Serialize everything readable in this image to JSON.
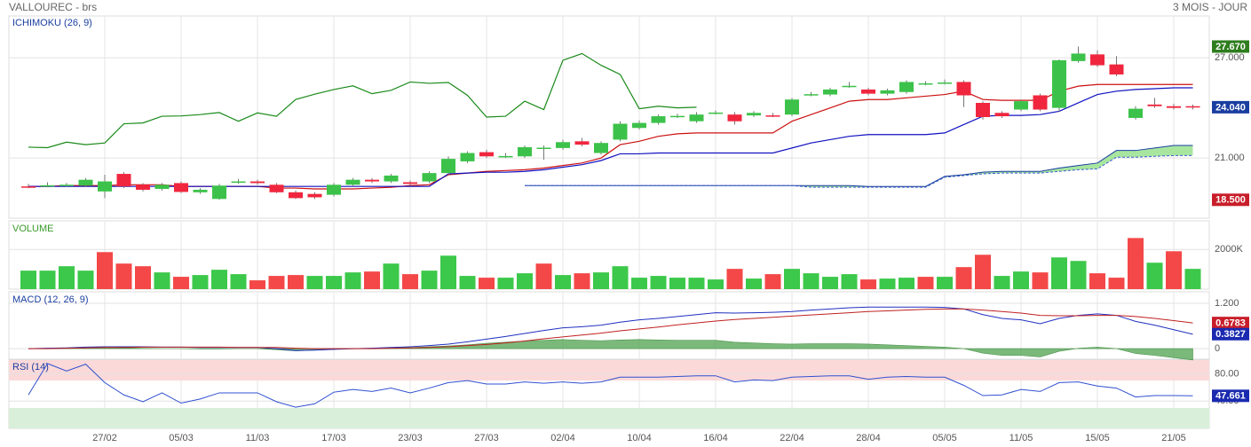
{
  "header": {
    "title": "VALLOUREC - brs",
    "period": "3 MOIS - JOUR"
  },
  "chart_data": [
    {
      "type": "candlestick",
      "title": "ICHIMOKU (26, 9)",
      "categories": [
        null,
        null,
        null,
        null,
        "27/02",
        null,
        null,
        null,
        "05/03",
        null,
        null,
        null,
        "11/03",
        null,
        null,
        null,
        "17/03",
        null,
        null,
        null,
        "23/03",
        null,
        null,
        null,
        "27/03",
        null,
        null,
        null,
        "02/04",
        null,
        null,
        null,
        "10/04",
        null,
        null,
        null,
        "16/04",
        null,
        null,
        null,
        "22/04",
        null,
        null,
        null,
        "28/04",
        null,
        null,
        null,
        "05/05",
        null,
        null,
        null,
        "11/05",
        null,
        null,
        null,
        "15/05",
        null,
        null,
        null,
        "21/05",
        null
      ],
      "open": [
        19.3,
        19.33,
        19.38,
        19.35,
        19.0,
        20.05,
        19.4,
        19.15,
        19.5,
        18.95,
        18.55,
        19.55,
        19.6,
        19.4,
        18.95,
        18.85,
        18.8,
        19.4,
        19.7,
        19.6,
        19.55,
        19.6,
        20.1,
        20.8,
        21.35,
        21.1,
        21.1,
        21.6,
        21.6,
        22.0,
        21.3,
        22.1,
        22.8,
        23.1,
        23.5,
        23.2,
        23.7,
        23.6,
        23.55,
        23.55,
        23.6,
        24.8,
        24.8,
        25.3,
        25.1,
        24.85,
        24.95,
        25.45,
        25.5,
        25.55,
        24.3,
        23.7,
        23.9,
        24.75,
        24.0,
        26.8,
        27.2,
        26.6,
        23.4,
        24.2,
        24.1,
        24.1
      ],
      "high": [
        19.45,
        19.55,
        19.5,
        19.8,
        20.0,
        20.15,
        19.5,
        19.5,
        19.6,
        19.2,
        19.45,
        19.75,
        19.7,
        19.5,
        19.05,
        18.95,
        19.5,
        19.8,
        19.8,
        20.05,
        19.65,
        20.2,
        21.1,
        21.4,
        21.5,
        21.3,
        21.75,
        21.75,
        22.1,
        22.2,
        22.0,
        23.2,
        23.25,
        23.6,
        23.65,
        23.75,
        23.85,
        23.75,
        23.8,
        23.7,
        24.6,
        24.95,
        25.2,
        25.55,
        25.2,
        25.15,
        25.65,
        25.6,
        25.7,
        25.65,
        24.4,
        23.8,
        24.5,
        24.85,
        26.9,
        27.67,
        27.45,
        27.1,
        24.1,
        24.6,
        24.25,
        24.2
      ],
      "low": [
        19.2,
        19.25,
        19.3,
        19.25,
        18.6,
        19.2,
        19.0,
        19.05,
        18.9,
        18.85,
        18.5,
        19.45,
        19.4,
        18.9,
        18.55,
        18.55,
        18.7,
        19.3,
        19.5,
        19.5,
        19.35,
        19.5,
        20.0,
        20.7,
        21.0,
        21.0,
        21.0,
        20.9,
        21.5,
        21.7,
        21.2,
        22.0,
        22.7,
        23.0,
        23.4,
        23.1,
        23.6,
        23.0,
        23.45,
        23.45,
        23.5,
        24.7,
        24.7,
        25.2,
        24.75,
        24.75,
        24.85,
        25.35,
        25.4,
        24.05,
        23.3,
        23.4,
        23.8,
        23.8,
        23.75,
        26.7,
        26.45,
        25.9,
        23.3,
        24.0,
        23.9,
        23.9
      ],
      "close": [
        19.28,
        19.37,
        19.4,
        19.7,
        19.6,
        19.3,
        19.1,
        19.4,
        18.97,
        19.1,
        19.35,
        19.6,
        19.5,
        18.95,
        18.6,
        18.65,
        19.4,
        19.7,
        19.6,
        19.95,
        19.45,
        20.1,
        20.95,
        21.3,
        21.1,
        21.12,
        21.65,
        21.62,
        21.95,
        21.8,
        21.9,
        23.05,
        23.1,
        23.5,
        23.52,
        23.6,
        23.72,
        23.2,
        23.7,
        23.5,
        24.5,
        24.82,
        25.1,
        25.32,
        24.85,
        25.05,
        25.55,
        25.47,
        25.52,
        24.75,
        23.45,
        23.5,
        24.4,
        23.9,
        26.85,
        27.25,
        26.55,
        26.0,
        23.95,
        24.1,
        24.0,
        24.04
      ],
      "up_color": "#3cc24a",
      "down_color": "#f0263e",
      "series": [
        {
          "color": "#cc1010",
          "values": [
            19.3,
            19.3,
            19.35,
            19.35,
            19.35,
            19.4,
            19.4,
            19.4,
            19.3,
            19.3,
            19.3,
            19.3,
            19.3,
            19.2,
            19.2,
            19.15,
            19.15,
            19.15,
            19.2,
            19.25,
            19.35,
            19.4,
            20.0,
            20.1,
            20.2,
            20.25,
            20.3,
            20.4,
            20.55,
            20.7,
            21.0,
            21.8,
            22.0,
            22.3,
            22.45,
            22.5,
            22.5,
            22.5,
            22.5,
            22.5,
            23.2,
            23.6,
            24.0,
            24.4,
            24.5,
            24.5,
            24.6,
            24.7,
            24.8,
            25.0,
            24.5,
            24.45,
            24.45,
            24.45,
            25.0,
            25.3,
            25.4,
            25.4,
            25.4,
            25.4,
            25.4,
            25.4
          ]
        },
        {
          "color": "#1010c0",
          "values": [
            19.3,
            19.3,
            19.3,
            19.3,
            19.3,
            19.3,
            19.3,
            19.3,
            19.3,
            19.3,
            19.3,
            19.3,
            19.3,
            19.3,
            19.3,
            19.3,
            19.3,
            19.3,
            19.3,
            19.3,
            19.3,
            19.3,
            20.05,
            20.1,
            20.15,
            20.15,
            20.2,
            20.3,
            20.45,
            20.6,
            20.85,
            21.25,
            21.25,
            21.3,
            21.3,
            21.3,
            21.3,
            21.3,
            21.3,
            21.3,
            21.6,
            21.9,
            22.1,
            22.3,
            22.4,
            22.4,
            22.4,
            22.4,
            22.5,
            23.0,
            23.5,
            23.55,
            23.55,
            23.6,
            23.8,
            24.3,
            24.8,
            25.0,
            25.1,
            25.15,
            25.2,
            25.2
          ]
        },
        {
          "color": "#1a8a1a",
          "values": [
            21.65,
            21.62,
            21.95,
            21.8,
            21.9,
            23.05,
            23.1,
            23.5,
            23.52,
            23.6,
            23.72,
            23.2,
            23.7,
            23.5,
            24.5,
            24.82,
            25.1,
            25.32,
            24.85,
            25.05,
            25.55,
            25.47,
            25.52,
            24.75,
            23.45,
            23.5,
            24.4,
            23.9,
            26.85,
            27.25,
            26.55,
            26.0,
            23.95,
            24.1,
            24.0,
            24.04,
            null,
            null,
            null,
            null,
            null,
            null,
            null,
            null,
            null,
            null,
            null,
            null,
            null,
            null,
            null,
            null,
            null,
            null,
            null,
            null,
            null,
            null,
            null,
            null,
            null,
            null
          ]
        }
      ],
      "cloud": {
        "color": "#a8e6a0",
        "upper": {
          "color": "#1a3ea0",
          "values": [
            null,
            null,
            null,
            null,
            null,
            null,
            null,
            null,
            null,
            null,
            null,
            null,
            null,
            null,
            null,
            null,
            null,
            null,
            null,
            null,
            null,
            null,
            null,
            null,
            null,
            null,
            19.35,
            19.35,
            19.35,
            19.35,
            19.35,
            19.35,
            19.35,
            19.35,
            19.35,
            19.35,
            19.35,
            19.35,
            19.35,
            19.35,
            19.35,
            19.35,
            19.35,
            19.35,
            19.3,
            19.3,
            19.3,
            19.3,
            19.9,
            20.0,
            20.15,
            20.2,
            20.2,
            20.2,
            20.4,
            20.55,
            20.7,
            21.45,
            21.45,
            21.6,
            21.75,
            21.75
          ]
        },
        "lower": {
          "color": "#3a5ad0",
          "values": [
            null,
            null,
            null,
            null,
            null,
            null,
            null,
            null,
            null,
            null,
            null,
            null,
            null,
            null,
            null,
            null,
            null,
            null,
            null,
            null,
            null,
            null,
            null,
            null,
            null,
            null,
            19.35,
            19.35,
            19.35,
            19.35,
            19.35,
            19.35,
            19.35,
            19.35,
            19.35,
            19.35,
            19.35,
            19.35,
            19.35,
            19.35,
            19.35,
            19.25,
            19.25,
            19.25,
            19.25,
            19.25,
            19.25,
            19.25,
            19.85,
            19.95,
            20.05,
            20.1,
            20.1,
            20.1,
            20.2,
            20.3,
            20.35,
            21.05,
            21.05,
            21.1,
            21.15,
            21.15
          ]
        }
      },
      "ylim": [
        17.4,
        29.5
      ],
      "yticks": [
        {
          "value": 21,
          "label": "21.000"
        },
        {
          "value": 27,
          "label": "27.000"
        }
      ],
      "price_labels": [
        {
          "value": 27.67,
          "label": "27.670",
          "color": "#2e7d1e"
        },
        {
          "value": 24.04,
          "label": "24.040",
          "color": "#1a3ea0"
        },
        {
          "value": 18.5,
          "label": "18.500",
          "color": "#c81e2a"
        }
      ]
    },
    {
      "type": "bar",
      "title": "VOLUME",
      "values": [
        933000,
        933000,
        1156000,
        933000,
        1867000,
        1289000,
        1156000,
        844000,
        622000,
        711000,
        978000,
        756000,
        444000,
        667000,
        711000,
        667000,
        667000,
        844000,
        889000,
        1289000,
        756000,
        933000,
        1689000,
        667000,
        578000,
        578000,
        800000,
        1289000,
        711000,
        800000,
        844000,
        1156000,
        578000,
        667000,
        578000,
        578000,
        489000,
        1022000,
        533000,
        756000,
        1022000,
        800000,
        622000,
        756000,
        489000,
        533000,
        578000,
        622000,
        622000,
        1111000,
        1733000,
        667000,
        889000,
        844000,
        1600000,
        1422000,
        800000,
        578000,
        2578000,
        1333000,
        1911000,
        1022000
      ],
      "up_color": "#3cc84a",
      "down_color": "#f44848",
      "ylim": [
        0,
        3400000
      ],
      "yticks": [
        {
          "value": 2000000,
          "label": "2000K"
        }
      ]
    },
    {
      "type": "macd",
      "title": "MACD (12, 26, 9)",
      "series": [
        {
          "color": "#2030c0",
          "values": [
            0.0,
            0.01,
            0.02,
            0.04,
            0.05,
            0.05,
            0.05,
            0.04,
            0.04,
            0.03,
            0.03,
            0.03,
            0.03,
            0.0,
            -0.05,
            -0.04,
            -0.02,
            0.0,
            0.01,
            0.03,
            0.05,
            0.08,
            0.12,
            0.18,
            0.25,
            0.32,
            0.4,
            0.48,
            0.55,
            0.58,
            0.62,
            0.7,
            0.76,
            0.8,
            0.85,
            0.9,
            0.95,
            0.94,
            0.95,
            0.96,
            0.98,
            1.02,
            1.05,
            1.08,
            1.1,
            1.1,
            1.1,
            1.1,
            1.09,
            1.05,
            0.9,
            0.8,
            0.76,
            0.66,
            0.8,
            0.88,
            0.92,
            0.88,
            0.72,
            0.62,
            0.5,
            0.38
          ]
        },
        {
          "color": "#c02020",
          "values": [
            0.0,
            0.0,
            0.01,
            0.02,
            0.03,
            0.03,
            0.04,
            0.04,
            0.04,
            0.04,
            0.04,
            0.03,
            0.03,
            0.03,
            0.01,
            0.0,
            0.0,
            0.0,
            0.0,
            0.01,
            0.02,
            0.03,
            0.05,
            0.08,
            0.11,
            0.15,
            0.2,
            0.26,
            0.31,
            0.36,
            0.41,
            0.47,
            0.52,
            0.57,
            0.63,
            0.68,
            0.73,
            0.77,
            0.8,
            0.83,
            0.86,
            0.89,
            0.92,
            0.95,
            0.98,
            1.0,
            1.02,
            1.04,
            1.05,
            1.05,
            1.02,
            0.98,
            0.94,
            0.88,
            0.87,
            0.87,
            0.88,
            0.88,
            0.85,
            0.8,
            0.74,
            0.68
          ]
        }
      ],
      "histogram": {
        "color": "#5aa85a",
        "values": [
          0,
          0.01,
          0.01,
          0.02,
          0.02,
          0.02,
          0.01,
          0,
          0,
          -0.01,
          -0.01,
          0,
          0,
          -0.03,
          -0.06,
          -0.04,
          -0.02,
          0,
          0.01,
          0.02,
          0.03,
          0.05,
          0.07,
          0.1,
          0.14,
          0.17,
          0.2,
          0.22,
          0.24,
          0.22,
          0.21,
          0.23,
          0.24,
          0.23,
          0.22,
          0.22,
          0.22,
          0.17,
          0.15,
          0.13,
          0.12,
          0.13,
          0.13,
          0.13,
          0.12,
          0.1,
          0.08,
          0.06,
          0.04,
          0,
          -0.12,
          -0.18,
          -0.18,
          -0.22,
          -0.07,
          0.01,
          0.04,
          0,
          -0.13,
          -0.18,
          -0.24,
          -0.3
        ]
      },
      "ylim": [
        -0.28,
        1.48
      ],
      "yticks": [
        {
          "value": 1.2,
          "label": "1.200"
        },
        0
      ],
      "price_labels": [
        {
          "value": 0.6783,
          "label": "0.6783",
          "color": "#c81e2a"
        },
        {
          "value": 0.3827,
          "label": "0.3827",
          "color": "#1a2ab0"
        }
      ]
    },
    {
      "type": "line",
      "title": "RSI (14)",
      "series": [
        {
          "color": "#3050d0",
          "values": [
            49,
            95,
            84,
            94,
            67,
            49,
            39,
            52,
            37,
            43,
            52,
            52,
            52,
            39,
            31,
            36,
            53,
            57,
            54,
            59,
            52,
            59,
            67,
            70,
            65,
            65,
            68,
            66,
            68,
            66,
            68,
            75,
            75,
            75,
            76,
            77,
            77,
            68,
            71,
            70,
            75,
            76,
            77,
            77,
            72,
            75,
            76,
            75,
            75,
            63,
            48,
            49,
            57,
            54,
            67,
            68,
            62,
            59,
            46,
            48,
            48,
            47.661
          ]
        }
      ],
      "bands": [
        {
          "from": 70,
          "to": 100,
          "color": "#fbd9d9"
        },
        {
          "from": 0,
          "to": 30,
          "color": "#d9efd9"
        }
      ],
      "ylim": [
        0,
        100
      ],
      "yticks": [
        {
          "value": 80,
          "label": "80.00"
        },
        {
          "value": 40,
          "label": "40.00"
        }
      ],
      "price_labels": [
        {
          "value": 47.661,
          "label": "47.661",
          "color": "#1a2ab0"
        }
      ]
    }
  ]
}
